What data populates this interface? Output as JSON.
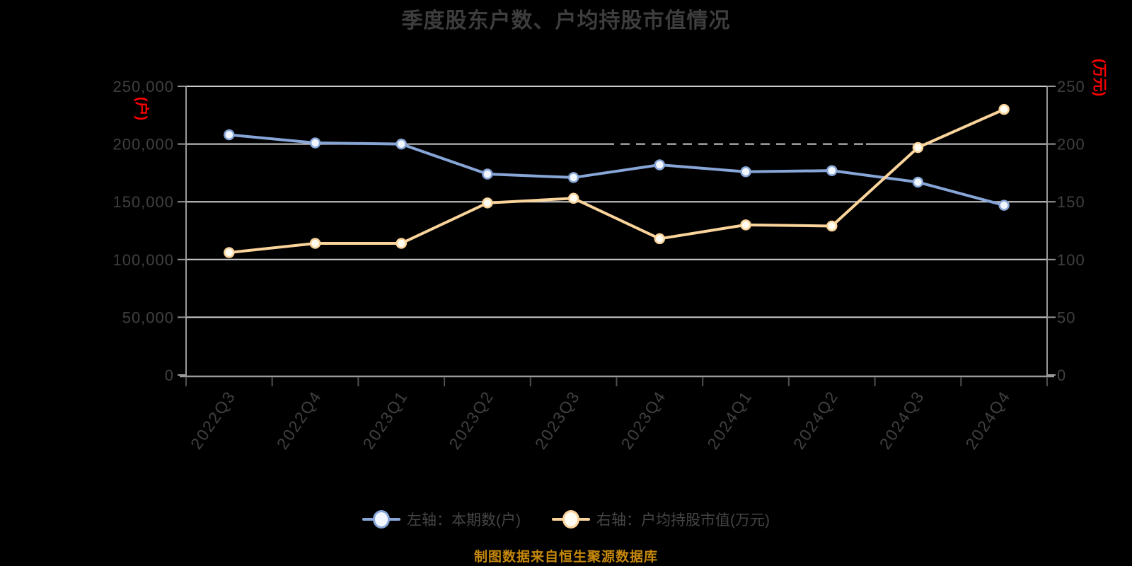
{
  "title": "季度股东户数、户均持股市值情况",
  "source_note": "制图数据来自恒生聚源数据库",
  "colors": {
    "background": "#000000",
    "title_text": "#3d3d3d",
    "axis_text": "#404040",
    "axis_line": "#9a9a9a",
    "grid_line": "#cfcfcf",
    "x_tick": "#4f4f4f",
    "unit_text": "#ff0000",
    "series_shareholders": "#87a5d7",
    "series_market_value": "#fad49b",
    "source_note_text": "#c6880b"
  },
  "legend": {
    "items": [
      {
        "label": "左轴：本期数(户)",
        "color": "#87a5d7",
        "marker_fill": "#f2f7ff"
      },
      {
        "label": "右轴：户均持股市值(万元)",
        "color": "#fad49b",
        "marker_fill": "#fffcf1"
      }
    ]
  },
  "left_axis": {
    "unit": "(户)",
    "tick_labels": [
      "0",
      "50,000",
      "100,000",
      "150,000",
      "200,000",
      "250,000"
    ],
    "range": [
      0,
      250000
    ]
  },
  "right_axis": {
    "unit": "(万元)",
    "tick_labels": [
      "0",
      "50",
      "100",
      "150",
      "200",
      "250"
    ],
    "range": [
      0,
      250
    ]
  },
  "chart_data": {
    "type": "line",
    "title": "季度股东户数、户均持股市值情况",
    "categories": [
      "2022Q3",
      "2022Q4",
      "2023Q1",
      "2023Q2",
      "2023Q3",
      "2023Q4",
      "2024Q1",
      "2024Q2",
      "2024Q3",
      "2024Q4"
    ],
    "series": [
      {
        "name": "左轴：本期数(户)",
        "yaxis": "left",
        "color": "#87a5d7",
        "marker_fill": "#f2f7ff",
        "values": [
          208000,
          201000,
          200000,
          174000,
          171000,
          182000,
          176000,
          177000,
          167000,
          147000
        ]
      },
      {
        "name": "右轴：户均持股市值(万元)",
        "yaxis": "right",
        "color": "#fad49b",
        "marker_fill": "#fffcf1",
        "values": [
          106,
          114,
          114,
          149,
          153,
          118,
          130,
          129,
          197,
          230
        ]
      }
    ],
    "left_ylim": [
      0,
      250000
    ],
    "right_ylim": [
      0,
      250
    ],
    "grid": true,
    "legend_position": "bottom",
    "x_label_rotation": -56
  }
}
